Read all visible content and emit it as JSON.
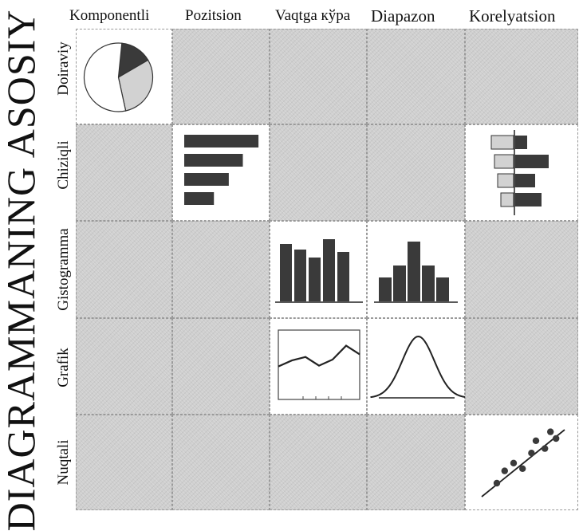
{
  "title": "DIAGRAMMANING ASOSIY",
  "columns": [
    "Komponentli",
    "Pozitsion",
    "Vaqtga кўра",
    "Diapazon",
    "Korelyatsion"
  ],
  "rows": [
    "Doiraviy",
    "Chiziqli",
    "Gistogramma",
    "Grafik",
    "Nuqtali"
  ],
  "colors": {
    "dark": "#3a3a3a",
    "light": "#d2d2d2",
    "cell_gray": "#cfcfcf"
  },
  "active_cells": [
    {
      "row": 0,
      "col": 0,
      "kind": "pie"
    },
    {
      "row": 1,
      "col": 1,
      "kind": "hbar"
    },
    {
      "row": 1,
      "col": 4,
      "kind": "correlation-bar"
    },
    {
      "row": 2,
      "col": 2,
      "kind": "bar"
    },
    {
      "row": 2,
      "col": 3,
      "kind": "histogram"
    },
    {
      "row": 3,
      "col": 2,
      "kind": "line"
    },
    {
      "row": 3,
      "col": 3,
      "kind": "bell-curve"
    },
    {
      "row": 4,
      "col": 4,
      "kind": "scatter"
    }
  ],
  "pie": {
    "values": [
      15,
      30,
      55
    ]
  },
  "hbar": {
    "values": [
      95,
      75,
      57,
      38
    ]
  },
  "correlation": {
    "left": [
      28,
      24,
      20,
      16
    ],
    "right": [
      15,
      42,
      25,
      33
    ]
  },
  "time_bars": {
    "values": [
      72,
      65,
      55,
      78,
      62
    ]
  },
  "range_bars": {
    "values": [
      30,
      45,
      75,
      45,
      30
    ]
  },
  "line_points": {
    "values": [
      3.8,
      4.5,
      4.9,
      3.9,
      4.6,
      6.2,
      5.2
    ]
  },
  "bell_curve": {
    "mean": 0,
    "sd": 1
  },
  "scatter": {
    "points": [
      [
        1.5,
        1.5
      ],
      [
        2.2,
        2.6
      ],
      [
        3.0,
        3.3
      ],
      [
        3.8,
        2.8
      ],
      [
        4.6,
        4.2
      ],
      [
        5.0,
        5.3
      ],
      [
        5.8,
        4.6
      ],
      [
        6.3,
        6.1
      ],
      [
        6.8,
        5.5
      ]
    ]
  }
}
